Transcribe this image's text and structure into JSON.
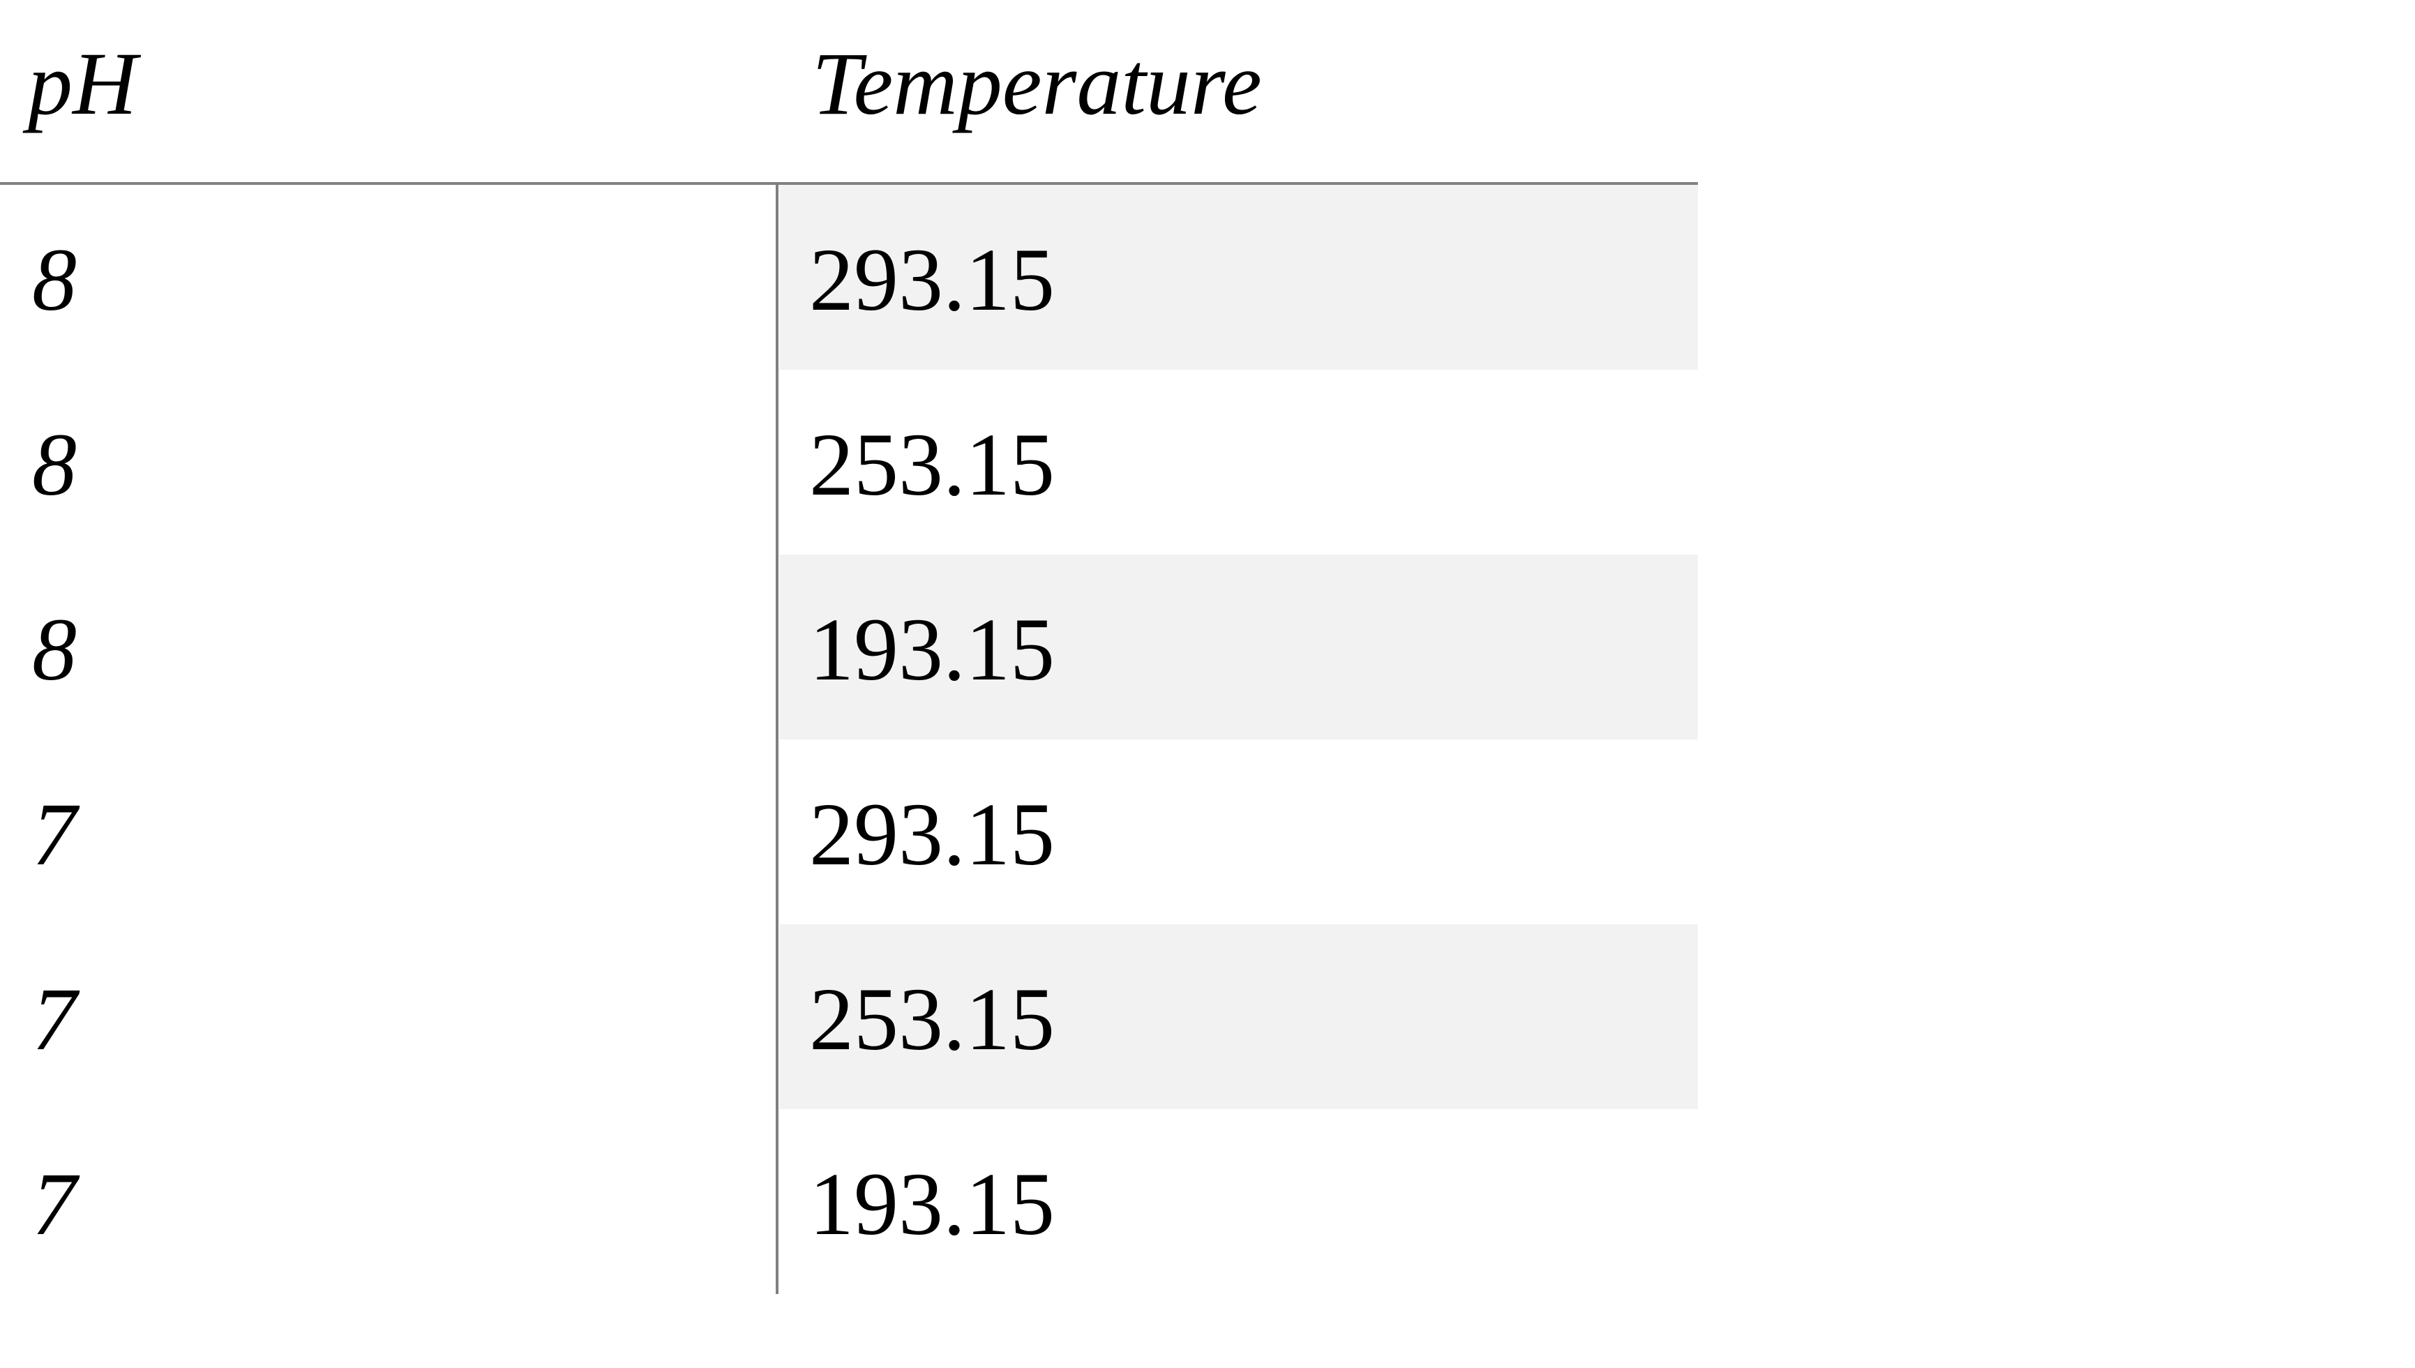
{
  "table": {
    "headers": [
      "pH",
      "Temperature"
    ],
    "rows": [
      {
        "ph": "8",
        "temperature": "293.15"
      },
      {
        "ph": "8",
        "temperature": "253.15"
      },
      {
        "ph": "8",
        "temperature": "193.15"
      },
      {
        "ph": "7",
        "temperature": "293.15"
      },
      {
        "ph": "7",
        "temperature": "253.15"
      },
      {
        "ph": "7",
        "temperature": "193.15"
      }
    ],
    "shade_color": "#f2f2f2",
    "rule_color": "#808080"
  }
}
